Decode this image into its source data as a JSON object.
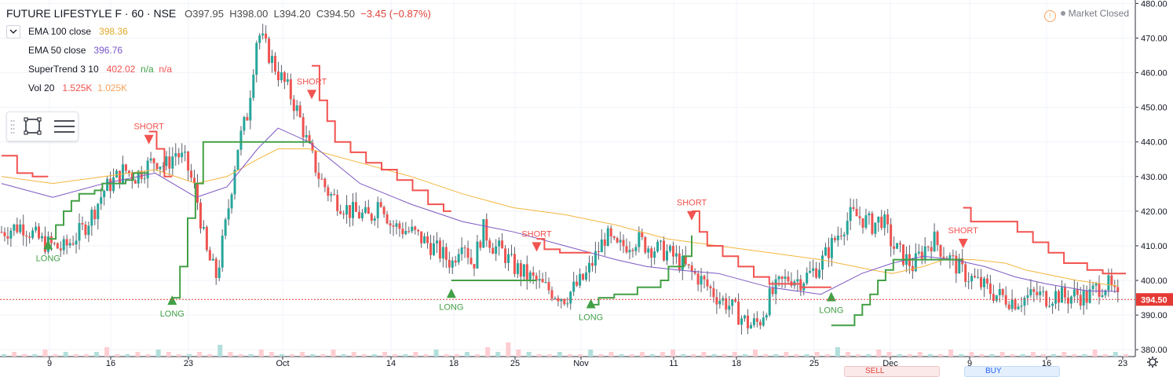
{
  "header": {
    "title": "FUTURE LIFESTYLE F · 60 · NSE",
    "open": "O397.95",
    "high": "H398.00",
    "low": "L394.20",
    "close": "C394.50",
    "change": "−3.45 (−0.87%)"
  },
  "indicators": [
    {
      "name": "EMA 100 close",
      "value": "398.36",
      "color": "#e0a829"
    },
    {
      "name": "EMA 50 close",
      "value": "396.76",
      "color": "#7a57cc"
    },
    {
      "name": "SuperTrend 3 10",
      "value": "402.02",
      "extra1": "n/a",
      "extra2": "n/a",
      "color": "#f05350",
      "color2": "#43a047"
    },
    {
      "name": "Vol 20",
      "value": "1.525K",
      "value2": "1.025K",
      "color": "#f05350",
      "color2": "#f7a35c"
    }
  ],
  "market_status": "Market Closed",
  "trade_buttons": {
    "sell": "SELL",
    "buy": "BUY"
  },
  "colors": {
    "up": "#26a69a",
    "down": "#ef5350",
    "long": "#43a047",
    "short": "#f05350",
    "ema100": "#f4b63e",
    "ema50": "#7e57c2",
    "last_price_bg": "#e53935"
  },
  "chart_data": {
    "type": "candlestick",
    "title": "FUTURE LIFESTYLE F · 60 · NSE",
    "ylim": [
      378,
      481
    ],
    "y_ticks": [
      "380.00",
      "390.00",
      "400.00",
      "410.00",
      "420.00",
      "430.00",
      "440.00",
      "450.00",
      "460.00",
      "470.00",
      "480.00"
    ],
    "x_ticks": [
      "9",
      "16",
      "23",
      "Oct",
      "14",
      "18",
      "25",
      "Nov",
      "11",
      "18",
      "25",
      "Dec",
      "9",
      "16",
      "23"
    ],
    "last_price": "394.50",
    "series": [
      {
        "name": "Price",
        "points": [
          [
            0,
            414
          ],
          [
            2,
            416
          ],
          [
            4,
            411
          ],
          [
            6,
            409
          ],
          [
            8,
            415
          ],
          [
            9,
            420
          ],
          [
            10,
            426
          ],
          [
            12,
            432
          ],
          [
            13,
            430
          ],
          [
            15,
            435
          ],
          [
            16,
            433
          ],
          [
            17,
            437
          ],
          [
            18,
            434
          ],
          [
            19,
            425
          ],
          [
            20,
            408
          ],
          [
            21,
            401
          ],
          [
            22,
            418
          ],
          [
            23,
            438
          ],
          [
            24,
            448
          ],
          [
            25,
            472
          ],
          [
            26,
            466
          ],
          [
            27,
            460
          ],
          [
            28,
            455
          ],
          [
            29,
            448
          ],
          [
            30,
            438
          ],
          [
            31,
            430
          ],
          [
            32,
            425
          ],
          [
            34,
            420
          ],
          [
            36,
            418
          ],
          [
            37,
            424
          ],
          [
            38,
            416
          ],
          [
            40,
            414
          ],
          [
            42,
            410
          ],
          [
            44,
            405
          ],
          [
            45,
            413
          ],
          [
            46,
            404
          ],
          [
            47,
            415
          ],
          [
            48,
            410
          ],
          [
            49,
            408
          ],
          [
            50,
            404
          ],
          [
            51,
            402
          ],
          [
            52,
            400
          ],
          [
            53,
            398
          ],
          [
            55,
            395
          ],
          [
            57,
            401
          ],
          [
            59,
            413
          ],
          [
            60,
            409
          ],
          [
            62,
            412
          ],
          [
            63,
            410
          ],
          [
            64,
            409
          ],
          [
            65,
            408
          ],
          [
            66,
            406
          ],
          [
            67,
            403
          ],
          [
            68,
            401
          ],
          [
            69,
            398
          ],
          [
            70,
            395
          ],
          [
            71,
            393
          ],
          [
            72,
            390
          ],
          [
            73,
            387
          ],
          [
            74,
            388
          ],
          [
            75,
            395
          ],
          [
            76,
            399
          ],
          [
            77,
            401
          ],
          [
            78,
            400
          ],
          [
            79,
            402
          ],
          [
            80,
            405
          ],
          [
            81,
            410
          ],
          [
            82,
            415
          ],
          [
            83,
            419
          ],
          [
            84,
            418
          ],
          [
            85,
            416
          ],
          [
            86,
            418
          ],
          [
            87,
            410
          ],
          [
            88,
            407
          ],
          [
            89,
            404
          ],
          [
            90,
            409
          ],
          [
            91,
            412
          ],
          [
            92,
            408
          ],
          [
            93,
            405
          ],
          [
            94,
            402
          ],
          [
            95,
            400
          ],
          [
            96,
            398
          ],
          [
            97,
            396
          ],
          [
            98,
            395
          ],
          [
            99,
            394
          ],
          [
            100,
            395
          ],
          [
            101,
            396
          ],
          [
            102,
            395
          ],
          [
            103,
            396
          ],
          [
            104,
            395
          ],
          [
            105,
            396
          ],
          [
            106,
            395
          ],
          [
            107,
            398
          ],
          [
            108,
            399
          ],
          [
            109,
            394
          ]
        ]
      },
      {
        "name": "EMA 100 close",
        "points": [
          [
            0,
            430
          ],
          [
            5,
            428
          ],
          [
            10,
            430
          ],
          [
            15,
            432
          ],
          [
            19,
            428
          ],
          [
            22,
            430
          ],
          [
            25,
            435
          ],
          [
            27,
            438
          ],
          [
            30,
            438
          ],
          [
            35,
            434
          ],
          [
            40,
            430
          ],
          [
            45,
            425
          ],
          [
            50,
            421
          ],
          [
            55,
            419
          ],
          [
            60,
            416
          ],
          [
            65,
            412
          ],
          [
            70,
            410
          ],
          [
            75,
            408
          ],
          [
            80,
            406
          ],
          [
            85,
            403
          ],
          [
            87,
            402
          ],
          [
            90,
            404
          ],
          [
            92,
            406
          ],
          [
            95,
            406
          ],
          [
            98,
            405
          ],
          [
            100,
            403
          ],
          [
            105,
            400
          ],
          [
            109,
            398.4
          ]
        ]
      },
      {
        "name": "EMA 50 close",
        "points": [
          [
            0,
            428
          ],
          [
            5,
            424
          ],
          [
            10,
            428
          ],
          [
            15,
            431
          ],
          [
            19,
            424
          ],
          [
            22,
            427
          ],
          [
            25,
            438
          ],
          [
            27,
            444
          ],
          [
            30,
            440
          ],
          [
            35,
            428
          ],
          [
            40,
            422
          ],
          [
            45,
            417
          ],
          [
            50,
            414
          ],
          [
            55,
            410
          ],
          [
            60,
            406
          ],
          [
            63,
            404
          ],
          [
            66,
            403
          ],
          [
            70,
            402
          ],
          [
            75,
            398
          ],
          [
            80,
            396
          ],
          [
            84,
            402
          ],
          [
            87,
            405
          ],
          [
            90,
            407
          ],
          [
            93,
            406
          ],
          [
            96,
            404
          ],
          [
            99,
            401
          ],
          [
            102,
            399
          ],
          [
            106,
            397
          ],
          [
            109,
            396.8
          ]
        ]
      },
      {
        "name": "SuperTrend 3 10",
        "segments": [
          {
            "trend": "short",
            "points": [
              [
                0,
                436
              ],
              [
                2,
                431
              ],
              [
                4,
                430
              ],
              [
                6,
                430
              ]
            ]
          },
          {
            "trend": "long",
            "points": [
              [
                6,
                412
              ],
              [
                7,
                416
              ],
              [
                8,
                420
              ],
              [
                9,
                423
              ],
              [
                10,
                425
              ],
              [
                12,
                426
              ],
              [
                13,
                428
              ],
              [
                15,
                428
              ],
              [
                16,
                429
              ],
              [
                17,
                431
              ],
              [
                19,
                431
              ]
            ]
          },
          {
            "trend": "short",
            "points": [
              [
                19,
                443
              ],
              [
                20,
                438
              ],
              [
                21,
                430
              ],
              [
                22,
                430
              ]
            ]
          },
          {
            "trend": "long",
            "points": [
              [
                22,
                395
              ],
              [
                23,
                404
              ],
              [
                24,
                418
              ],
              [
                25,
                428
              ],
              [
                26,
                440
              ],
              [
                40,
                440
              ]
            ]
          },
          {
            "trend": "short",
            "points": [
              [
                40,
                462
              ],
              [
                41,
                452
              ],
              [
                42,
                446
              ],
              [
                43,
                440
              ],
              [
                45,
                437
              ],
              [
                47,
                434
              ],
              [
                49,
                432
              ],
              [
                51,
                429
              ],
              [
                53,
                426
              ],
              [
                55,
                422
              ],
              [
                57,
                420
              ],
              [
                58,
                420
              ]
            ]
          },
          {
            "trend": "long",
            "points": [
              [
                58,
                400
              ],
              [
                69,
                400
              ]
            ]
          },
          {
            "trend": "short",
            "points": [
              [
                69,
                412
              ],
              [
                70,
                409
              ],
              [
                72,
                408
              ],
              [
                76,
                408
              ]
            ]
          },
          {
            "trend": "long",
            "points": [
              [
                76,
                393
              ],
              [
                77,
                395
              ],
              [
                79,
                396
              ],
              [
                82,
                398
              ],
              [
                84,
                398
              ],
              [
                85,
                400
              ],
              [
                86,
                404
              ],
              [
                87,
                404
              ],
              [
                88,
                407
              ],
              [
                89,
                413
              ]
            ]
          },
          {
            "trend": "short",
            "points": [
              [
                89,
                420
              ],
              [
                90,
                414
              ],
              [
                91,
                410
              ],
              [
                93,
                407
              ],
              [
                95,
                404
              ],
              [
                97,
                401
              ],
              [
                99,
                399
              ],
              [
                102,
                399
              ],
              [
                103,
                398
              ],
              [
                107,
                398
              ]
            ]
          },
          {
            "trend": "long",
            "points": [
              [
                107,
                387
              ],
              [
                109,
                387
              ],
              [
                110,
                390
              ],
              [
                111,
                393
              ],
              [
                112,
                396
              ],
              [
                113,
                400
              ],
              [
                114,
                403
              ],
              [
                115,
                406
              ],
              [
                124,
                406
              ]
            ]
          },
          {
            "trend": "short",
            "points": [
              [
                124,
                421
              ],
              [
                125,
                417
              ],
              [
                127,
                417
              ],
              [
                130,
                417
              ],
              [
                131,
                414
              ],
              [
                133,
                411
              ],
              [
                135,
                408
              ],
              [
                137,
                405
              ],
              [
                140,
                403
              ],
              [
                142,
                402
              ],
              [
                145,
                402
              ]
            ]
          }
        ]
      }
    ],
    "signals": [
      {
        "type": "LONG",
        "x": 6,
        "price": 411
      },
      {
        "type": "SHORT",
        "x": 19,
        "price": 440
      },
      {
        "type": "LONG",
        "x": 22,
        "price": 395
      },
      {
        "type": "SHORT",
        "x": 40,
        "price": 453
      },
      {
        "type": "LONG",
        "x": 58,
        "price": 397
      },
      {
        "type": "SHORT",
        "x": 69,
        "price": 409
      },
      {
        "type": "LONG",
        "x": 76,
        "price": 394
      },
      {
        "type": "SHORT",
        "x": 89,
        "price": 418
      },
      {
        "type": "LONG",
        "x": 107,
        "price": 396
      },
      {
        "type": "SHORT",
        "x": 124,
        "price": 410
      }
    ],
    "volume": [
      1,
      2,
      1,
      1,
      3,
      1,
      2,
      1,
      1,
      2,
      4,
      1,
      1,
      2,
      1,
      3,
      2,
      1,
      1,
      2,
      1,
      5,
      2,
      1,
      1,
      3,
      2,
      1,
      1,
      2,
      1,
      1,
      3,
      1,
      2,
      1,
      1,
      2,
      1,
      1,
      2,
      1,
      3,
      1,
      1,
      2,
      1,
      4,
      2,
      6,
      3,
      2,
      1,
      1,
      2,
      1,
      1,
      3,
      1,
      2,
      1,
      1,
      2,
      1,
      2,
      3,
      1,
      1,
      2,
      1,
      1,
      2,
      1,
      3,
      1,
      1,
      2,
      1,
      1,
      2,
      1,
      4,
      2,
      1,
      1,
      3,
      2,
      1,
      1,
      2,
      1,
      1,
      3,
      1,
      2,
      1,
      1,
      2,
      1,
      1,
      2,
      1,
      1,
      2,
      1,
      1,
      3,
      1,
      2,
      1
    ]
  }
}
